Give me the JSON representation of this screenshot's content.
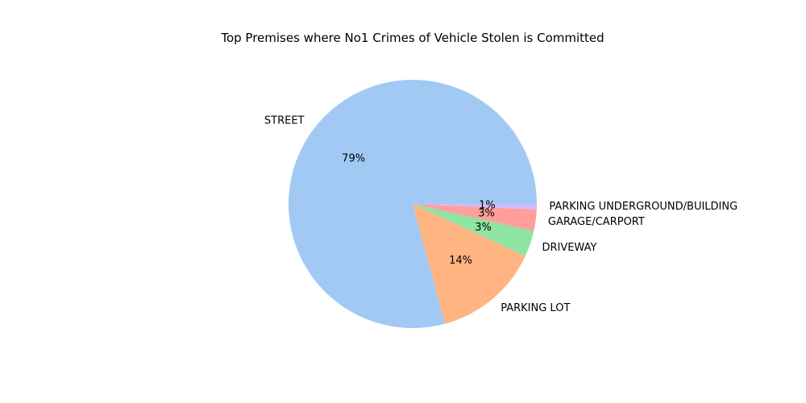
{
  "chart_data": {
    "type": "pie",
    "title": "Top Premises where No1 Crimes of Vehicle Stolen is Committed",
    "categories": [
      "STREET",
      "PARKING LOT",
      "DRIVEWAY",
      "GARAGE/CARPORT",
      "PARKING UNDERGROUND/BUILDING"
    ],
    "values": [
      79.2,
      13.9,
      3.4,
      2.8,
      0.7
    ],
    "percent_labels": [
      "79%",
      "14%",
      "3%",
      "3%",
      "1%"
    ],
    "colors": [
      "#a1c9f4",
      "#ffb482",
      "#8de5a1",
      "#ff9f9b",
      "#d0bbff"
    ],
    "start_angle_deg": 0,
    "direction": "counterclockwise",
    "legend": "none"
  }
}
